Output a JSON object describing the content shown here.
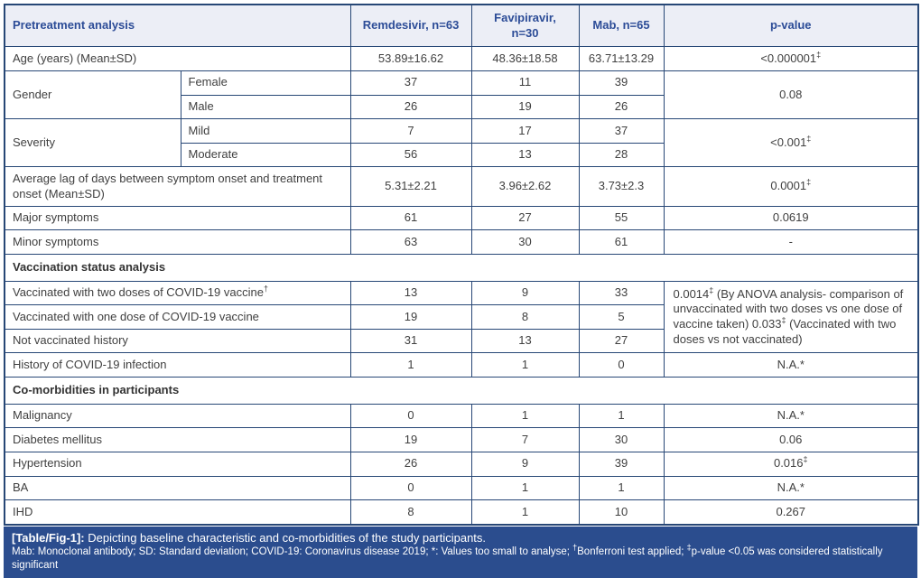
{
  "colors": {
    "border": "#274776",
    "header_bg": "#eceef6",
    "header_text": "#2c4c97",
    "body_text": "#404040",
    "footer_bg": "#2b4d8e",
    "footer_text": "#ffffff"
  },
  "table": {
    "header": {
      "title": "Pretreatment analysis",
      "columns": [
        "Remdesivir, n=63",
        "Favipiravir, n=30",
        "Mab, n=65",
        "p-value"
      ]
    },
    "rows": [
      {
        "name": "row-age",
        "cells": [
          {
            "t": "Age (years) (Mean±SD)",
            "cls": "label",
            "colspan": 2
          },
          {
            "t": "53.89±16.62",
            "cls": "num"
          },
          {
            "t": "48.36±18.58",
            "cls": "num"
          },
          {
            "t": "63.71±13.29",
            "cls": "num"
          },
          {
            "segs": [
              {
                "t": "<0.000001"
              },
              {
                "sup": "‡"
              }
            ],
            "cls": "num"
          }
        ]
      },
      {
        "name": "row-gender-female",
        "cells": [
          {
            "t": "Gender",
            "cls": "label",
            "rowspan": 2
          },
          {
            "t": "Female",
            "cls": "label"
          },
          {
            "t": "37",
            "cls": "num"
          },
          {
            "t": "11",
            "cls": "num"
          },
          {
            "t": "39",
            "cls": "num"
          },
          {
            "t": "0.08",
            "cls": "num",
            "rowspan": 2
          }
        ]
      },
      {
        "name": "row-gender-male",
        "cells": [
          {
            "t": "Male",
            "cls": "label"
          },
          {
            "t": "26",
            "cls": "num"
          },
          {
            "t": "19",
            "cls": "num"
          },
          {
            "t": "26",
            "cls": "num"
          }
        ]
      },
      {
        "name": "row-severity-mild",
        "cells": [
          {
            "t": "Severity",
            "cls": "label",
            "rowspan": 2
          },
          {
            "t": "Mild",
            "cls": "label"
          },
          {
            "t": "7",
            "cls": "num"
          },
          {
            "t": "17",
            "cls": "num"
          },
          {
            "t": "37",
            "cls": "num"
          },
          {
            "segs": [
              {
                "t": "<0.001"
              },
              {
                "sup": "‡"
              }
            ],
            "cls": "num",
            "rowspan": 2
          }
        ]
      },
      {
        "name": "row-severity-moderate",
        "cells": [
          {
            "t": "Moderate",
            "cls": "label"
          },
          {
            "t": "56",
            "cls": "num"
          },
          {
            "t": "13",
            "cls": "num"
          },
          {
            "t": "28",
            "cls": "num"
          }
        ]
      },
      {
        "name": "row-avg-lag",
        "cells": [
          {
            "t": "Average lag of days between symptom onset and treatment onset (Mean±SD)",
            "cls": "label",
            "colspan": 2
          },
          {
            "t": "5.31±2.21",
            "cls": "num"
          },
          {
            "t": "3.96±2.62",
            "cls": "num"
          },
          {
            "t": "3.73±2.3",
            "cls": "num"
          },
          {
            "segs": [
              {
                "t": "0.0001"
              },
              {
                "sup": "‡"
              }
            ],
            "cls": "num"
          }
        ]
      },
      {
        "name": "row-major-symptoms",
        "cells": [
          {
            "t": "Major symptoms",
            "cls": "label",
            "colspan": 2
          },
          {
            "t": "61",
            "cls": "num"
          },
          {
            "t": "27",
            "cls": "num"
          },
          {
            "t": "55",
            "cls": "num"
          },
          {
            "t": "0.0619",
            "cls": "num"
          }
        ]
      },
      {
        "name": "row-minor-symptoms",
        "cells": [
          {
            "t": "Minor symptoms",
            "cls": "label",
            "colspan": 2
          },
          {
            "t": "63",
            "cls": "num"
          },
          {
            "t": "30",
            "cls": "num"
          },
          {
            "t": "61",
            "cls": "num"
          },
          {
            "t": "-",
            "cls": "num"
          }
        ]
      },
      {
        "name": "section-vaccination-status",
        "section": true,
        "cells": [
          {
            "t": "Vaccination status analysis",
            "cls": "section",
            "colspan": 6
          }
        ]
      },
      {
        "name": "row-vaccinated-two-doses",
        "cells": [
          {
            "segs": [
              {
                "t": "Vaccinated with two doses of COVID-19 vaccine"
              },
              {
                "sup": "†"
              }
            ],
            "cls": "label",
            "colspan": 2
          },
          {
            "t": "13",
            "cls": "num"
          },
          {
            "t": "9",
            "cls": "num"
          },
          {
            "t": "33",
            "cls": "num"
          },
          {
            "segs": [
              {
                "t": "0.0014"
              },
              {
                "sup": "‡"
              },
              {
                "t": " (By ANOVA analysis- comparison of unvaccinated with two doses vs one dose of vaccine taken) 0.033"
              },
              {
                "sup": "‡"
              },
              {
                "t": " (Vaccinated with two doses vs not vaccinated)"
              }
            ],
            "cls": "pval-left",
            "rowspan": 3
          }
        ]
      },
      {
        "name": "row-vaccinated-one-dose",
        "cells": [
          {
            "t": "Vaccinated with one dose of COVID-19 vaccine",
            "cls": "label",
            "colspan": 2
          },
          {
            "t": "19",
            "cls": "num"
          },
          {
            "t": "8",
            "cls": "num"
          },
          {
            "t": "5",
            "cls": "num"
          }
        ]
      },
      {
        "name": "row-not-vaccinated",
        "cells": [
          {
            "t": "Not vaccinated history",
            "cls": "label",
            "colspan": 2
          },
          {
            "t": "31",
            "cls": "num"
          },
          {
            "t": "13",
            "cls": "num"
          },
          {
            "t": "27",
            "cls": "num"
          }
        ]
      },
      {
        "name": "row-covid-infection-history",
        "cells": [
          {
            "t": "History of COVID-19 infection",
            "cls": "label",
            "colspan": 2
          },
          {
            "t": "1",
            "cls": "num"
          },
          {
            "t": "1",
            "cls": "num"
          },
          {
            "t": "0",
            "cls": "num"
          },
          {
            "t": "N.A.*",
            "cls": "num"
          }
        ]
      },
      {
        "name": "section-comorbidities",
        "section": true,
        "cells": [
          {
            "t": "Co-morbidities in participants",
            "cls": "section",
            "colspan": 6
          }
        ]
      },
      {
        "name": "row-malignancy",
        "cells": [
          {
            "t": "Malignancy",
            "cls": "label",
            "colspan": 2
          },
          {
            "t": "0",
            "cls": "num"
          },
          {
            "t": "1",
            "cls": "num"
          },
          {
            "t": "1",
            "cls": "num"
          },
          {
            "t": "N.A.*",
            "cls": "num"
          }
        ]
      },
      {
        "name": "row-diabetes-mellitus",
        "cells": [
          {
            "t": "Diabetes mellitus",
            "cls": "label",
            "colspan": 2
          },
          {
            "t": "19",
            "cls": "num"
          },
          {
            "t": "7",
            "cls": "num"
          },
          {
            "t": "30",
            "cls": "num"
          },
          {
            "t": "0.06",
            "cls": "num"
          }
        ]
      },
      {
        "name": "row-hypertension",
        "cells": [
          {
            "t": "Hypertension",
            "cls": "label",
            "colspan": 2
          },
          {
            "t": "26",
            "cls": "num"
          },
          {
            "t": "9",
            "cls": "num"
          },
          {
            "t": "39",
            "cls": "num"
          },
          {
            "segs": [
              {
                "t": "0.016"
              },
              {
                "sup": "‡"
              }
            ],
            "cls": "num"
          }
        ]
      },
      {
        "name": "row-ba",
        "cells": [
          {
            "t": "BA",
            "cls": "label",
            "colspan": 2
          },
          {
            "t": "0",
            "cls": "num"
          },
          {
            "t": "1",
            "cls": "num"
          },
          {
            "t": "1",
            "cls": "num"
          },
          {
            "t": "N.A.*",
            "cls": "num"
          }
        ]
      },
      {
        "name": "row-ihd",
        "cells": [
          {
            "t": "IHD",
            "cls": "label",
            "colspan": 2
          },
          {
            "t": "8",
            "cls": "num"
          },
          {
            "t": "1",
            "cls": "num"
          },
          {
            "t": "10",
            "cls": "num"
          },
          {
            "t": "0.267",
            "cls": "num"
          }
        ]
      }
    ]
  },
  "footer": {
    "caption_label": "[Table/Fig-1]:",
    "caption_text": " Depicting baseline characteristic and co-morbidities of the study participants.",
    "footnote_segments": [
      {
        "t": "Mab: Monoclonal antibody; SD: Standard deviation; COVID-19: Coronavirus disease 2019; *: Values too small to analyse; "
      },
      {
        "sup": "†"
      },
      {
        "t": "Bonferroni test applied; "
      },
      {
        "sup": "‡"
      },
      {
        "t": "p-value <0.05 was considered statistically significant"
      }
    ]
  }
}
